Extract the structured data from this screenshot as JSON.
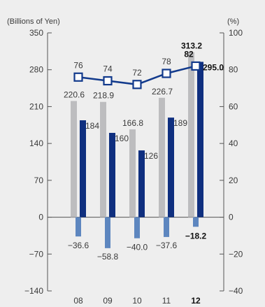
{
  "chart_data": {
    "type": "bar",
    "left_unit": "(Billions of Yen)",
    "right_unit": "(%)",
    "categories": [
      "08",
      "09",
      "10",
      "11",
      "12"
    ],
    "highlight_category": "12",
    "left_axis": {
      "ylim": [
        -140,
        350
      ],
      "ticks": [
        350,
        280,
        210,
        140,
        70,
        0,
        -70,
        -140
      ],
      "tick_labels": [
        "350",
        "280",
        "210",
        "140",
        "70",
        "0",
        "−70",
        "−140"
      ]
    },
    "right_axis": {
      "ylim": [
        -40,
        100
      ],
      "ticks": [
        100,
        80,
        60,
        40,
        20,
        0,
        -20,
        -40
      ],
      "tick_labels": [
        "100",
        "80",
        "60",
        "40",
        "20",
        "0",
        "−20",
        "−40"
      ]
    },
    "series": [
      {
        "kind": "bar",
        "axis": "left",
        "color": "#bdbdbf",
        "values": [
          220.6,
          218.9,
          166.8,
          226.7,
          313.2
        ],
        "labels": [
          "220.6",
          "218.9",
          "166.8",
          "226.7",
          "313.2"
        ]
      },
      {
        "kind": "bar",
        "axis": "left",
        "color": "#0f2f7f",
        "values": [
          184.0,
          160.1,
          126.8,
          189.1,
          295.0
        ],
        "labels": [
          "184.0",
          "160.1",
          "126.8",
          "189.1",
          "295.0"
        ]
      },
      {
        "kind": "bar",
        "axis": "left",
        "color": "#5d86bf",
        "values": [
          -36.6,
          -58.8,
          -40.0,
          -37.6,
          -18.2
        ],
        "labels": [
          "−36.6",
          "−58.8",
          "−40.0",
          "−37.6",
          "−18.2"
        ]
      },
      {
        "kind": "line",
        "axis": "right",
        "color": "#123a8c",
        "values": [
          76,
          74,
          72,
          78,
          82
        ],
        "labels": [
          "76",
          "74",
          "72",
          "78",
          "82"
        ]
      }
    ],
    "grid": false,
    "legend": "none"
  }
}
